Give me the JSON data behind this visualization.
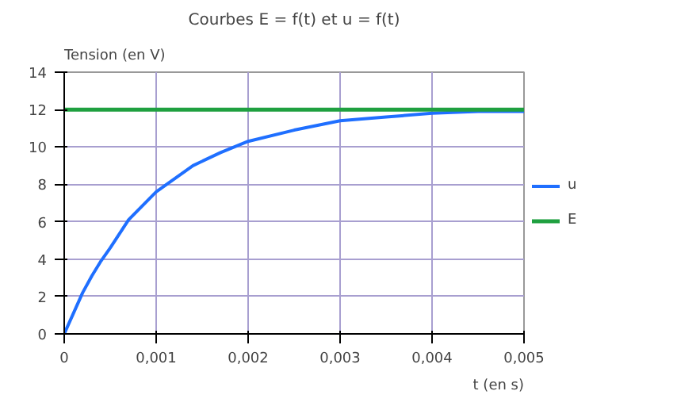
{
  "chart_data": {
    "type": "line",
    "title": "Courbes E = f(t) et u = f(t)",
    "ylabel": "Tension (en V)",
    "xlabel": "t (en s)",
    "series": [
      {
        "name": "u",
        "color": "#1f6fff",
        "x": [
          0,
          0.0001,
          0.0002,
          0.0003,
          0.0004,
          0.0005,
          0.0007,
          0.001,
          0.0014,
          0.0017,
          0.002,
          0.0025,
          0.003,
          0.0035,
          0.004,
          0.0045,
          0.005
        ],
        "values": [
          0,
          1.1,
          2.2,
          3.1,
          3.9,
          4.6,
          6.1,
          7.6,
          9.0,
          9.7,
          10.3,
          10.9,
          11.4,
          11.6,
          11.8,
          11.9,
          11.9
        ]
      },
      {
        "name": "E",
        "color": "#1fa040",
        "x": [
          0,
          0.005
        ],
        "values": [
          12,
          12
        ]
      }
    ],
    "xlim": [
      0,
      0.005
    ],
    "xticks": [
      0,
      {
        "value": 0.001,
        "label": "0,001"
      },
      {
        "value": 0.002,
        "label": "0,002"
      },
      {
        "value": 0.003,
        "label": "0,003"
      },
      {
        "value": 0.004,
        "label": "0,004"
      },
      {
        "value": 0.005,
        "label": "0,005"
      }
    ],
    "ylim": [
      0,
      14
    ],
    "yticks": [
      0,
      2,
      4,
      6,
      8,
      10,
      12,
      14
    ],
    "grid": true,
    "legend": "right",
    "marker": "none",
    "line_style": "solid"
  }
}
